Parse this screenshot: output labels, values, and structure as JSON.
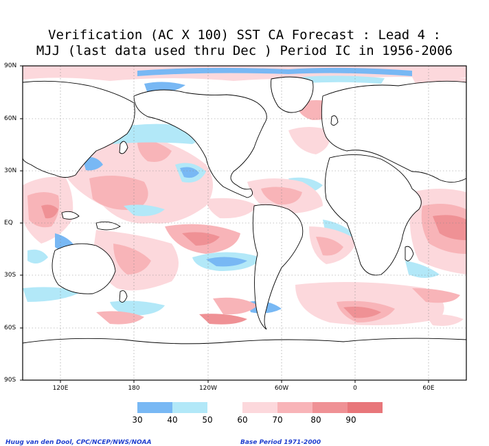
{
  "title": {
    "line1": "Verification (AC X 100) SST CA Forecast : Lead 4 :",
    "line2": "MJJ (last data used thru Dec ) Period IC in 1956-2006"
  },
  "map": {
    "lat_labels": [
      "90N",
      "60N",
      "30N",
      "EQ",
      "30S",
      "60S",
      "90S"
    ],
    "lon_labels": [
      "120E",
      "180",
      "120W",
      "60W",
      "0",
      "60E"
    ],
    "colors": {
      "land": "#ffffff",
      "coast": "#000000",
      "grid": "#888888"
    }
  },
  "legend": {
    "labels": [
      "30",
      "40",
      "50",
      "60",
      "70",
      "80",
      "90"
    ],
    "colors": [
      "#78b8f4",
      "#b2e8f8",
      "#ffffff",
      "#fcd8dc",
      "#f8b4b8",
      "#ef9195",
      "#e8767a",
      "#e25f62"
    ]
  },
  "footer": {
    "left": "Huug van den Dool, CPC/NCEP/NWS/NOAA",
    "right": "Base Period 1971-2000"
  }
}
